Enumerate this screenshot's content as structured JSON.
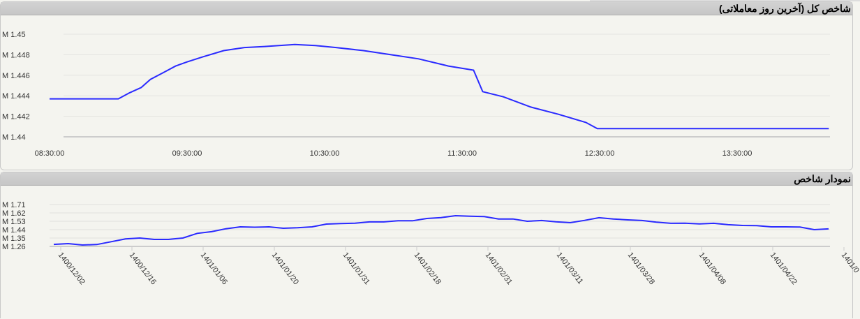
{
  "chart_data": [
    {
      "type": "line",
      "title": "شاخص کل (آخرین روز معاملاتی)",
      "y_ticks": [
        "M 1.45",
        "M 1.448",
        "M 1.446",
        "M 1.444",
        "M 1.442",
        "M 1.44"
      ],
      "ylim": [
        1.44,
        1.45
      ],
      "y_unit": "M",
      "x_ticks": [
        "08:30:00",
        "09:30:00",
        "10:30:00",
        "11:30:00",
        "12:30:00",
        "13:30:00"
      ],
      "grid": true,
      "color": "#2a2aff",
      "points": [
        [
          "08:30",
          1.4437
        ],
        [
          "09:00",
          1.4437
        ],
        [
          "09:05",
          1.4443
        ],
        [
          "09:10",
          1.4448
        ],
        [
          "09:14",
          1.4456
        ],
        [
          "09:20",
          1.4463
        ],
        [
          "09:25",
          1.4469
        ],
        [
          "09:30",
          1.4473
        ],
        [
          "09:37",
          1.4478
        ],
        [
          "09:46",
          1.4484
        ],
        [
          "09:55",
          1.4487
        ],
        [
          "10:04",
          1.4488
        ],
        [
          "10:17",
          1.449
        ],
        [
          "10:26",
          1.4489
        ],
        [
          "10:35",
          1.4487
        ],
        [
          "10:47",
          1.4484
        ],
        [
          "10:59",
          1.448
        ],
        [
          "11:11",
          1.4476
        ],
        [
          "11:24",
          1.4469
        ],
        [
          "11:35",
          1.4465
        ],
        [
          "11:39",
          1.4444
        ],
        [
          "11:48",
          1.4439
        ],
        [
          "12:00",
          1.4429
        ],
        [
          "12:12",
          1.4422
        ],
        [
          "12:24",
          1.4414
        ],
        [
          "12:29",
          1.4408
        ],
        [
          "14:10",
          1.4408
        ]
      ]
    },
    {
      "type": "line",
      "title": "نمودار شاخص",
      "y_ticks": [
        "M 1.71",
        "M 1.62",
        "M 1.53",
        "M 1.44",
        "M 1.35",
        "M 1.26"
      ],
      "ylim": [
        1.26,
        1.71
      ],
      "y_unit": "M",
      "x_ticks": [
        "1400/12/02",
        "1400/12/16",
        "1401/01/06",
        "1401/01/20",
        "1401/01/31",
        "1401/02/18",
        "1401/02/31",
        "1401/03/11",
        "1401/03/28",
        "1401/04/08",
        "1401/04/22",
        "1401/0"
      ],
      "grid": true,
      "color": "#2a2aff",
      "values": [
        1.282,
        1.29,
        1.275,
        1.28,
        1.31,
        1.34,
        1.35,
        1.335,
        1.335,
        1.35,
        1.4,
        1.418,
        1.45,
        1.47,
        1.466,
        1.47,
        1.455,
        1.46,
        1.47,
        1.5,
        1.505,
        1.51,
        1.523,
        1.523,
        1.535,
        1.535,
        1.56,
        1.57,
        1.59,
        1.585,
        1.58,
        1.555,
        1.555,
        1.53,
        1.538,
        1.525,
        1.515,
        1.54,
        1.568,
        1.555,
        1.545,
        1.538,
        1.52,
        1.508,
        1.51,
        1.502,
        1.508,
        1.493,
        1.485,
        1.483,
        1.47,
        1.47,
        1.468,
        1.44,
        1.448
      ]
    }
  ]
}
